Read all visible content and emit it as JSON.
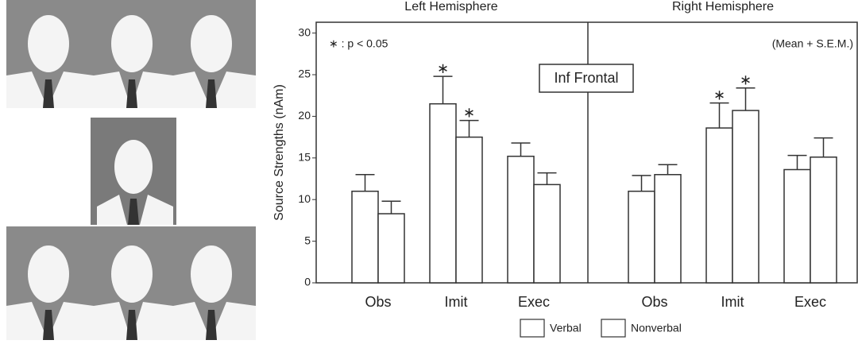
{
  "chart_data": {
    "type": "bar",
    "panel_titles": [
      "Left Hemisphere",
      "Right Hemisphere"
    ],
    "y_label": "Source Strengths (nAm)",
    "annotations": [
      "∗ : p < 0.05",
      "(Mean + S.E.M.)",
      "Inf Frontal"
    ],
    "categories": [
      "Obs",
      "Imit",
      "Exec",
      "Obs",
      "Imit",
      "Exec"
    ],
    "series": [
      {
        "name": "Verbal",
        "color": "#ffffff",
        "values": [
          11,
          21.5,
          15.2,
          11,
          18.6,
          13.6
        ],
        "errors": [
          2,
          3.3,
          1.6,
          1.9,
          3,
          1.7
        ],
        "significant": [
          null,
          "∗",
          null,
          null,
          "∗",
          null
        ]
      },
      {
        "name": "Nonverbal",
        "color": "#ffffff",
        "values": [
          8.3,
          17.5,
          11.8,
          13,
          20.7,
          15.1
        ],
        "errors": [
          1.5,
          2,
          1.4,
          1.2,
          2.7,
          2.3
        ],
        "significant": [
          null,
          "∗",
          null,
          null,
          "∗",
          null
        ]
      }
    ],
    "ylim": [
      0,
      31.3
    ],
    "yticks": [
      0,
      5,
      10,
      15,
      20,
      25,
      30
    ]
  }
}
